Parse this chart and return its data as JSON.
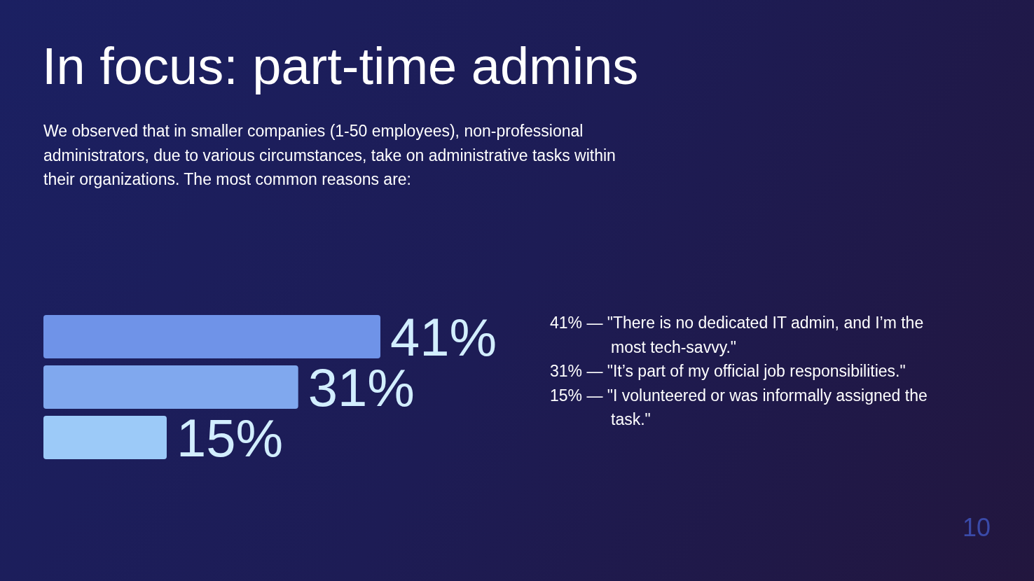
{
  "chart_data": {
    "type": "bar",
    "orientation": "horizontal",
    "title": "In focus: part-time admins",
    "subtitle": "We observed that in smaller companies (1-50 employees), non-professional administrators, due to various circumstances, take on administrative tasks within their organizations. The most common reasons are:",
    "categories": [
      null,
      null,
      null
    ],
    "values": [
      41,
      31,
      15
    ],
    "colors": [
      "#6f93e8",
      "#80a8ee",
      "#9ccaf8"
    ],
    "value_labels": [
      "41%",
      "31%",
      "15%"
    ],
    "annotations": [
      "41% — \"There is no dedicated IT admin, and I’m the most tech-savvy.\"",
      "31% — \"It’s part of my official job responsibilities.\"",
      "15% — \"I volunteered or was informally assigned the task.\"",
      "10"
    ],
    "grid": false
  }
}
